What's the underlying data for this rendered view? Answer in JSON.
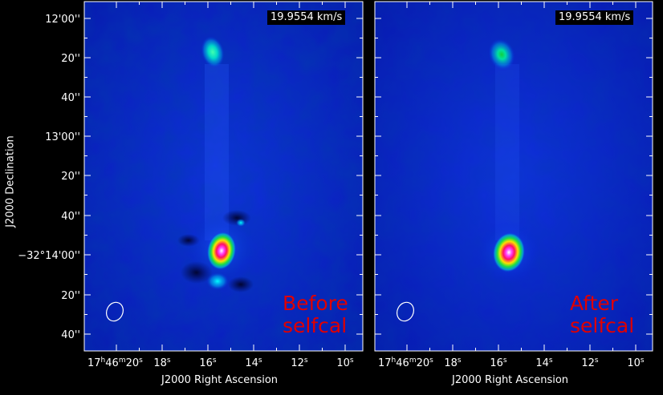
{
  "panels": [
    {
      "velocity_label": "19.9554 km/s",
      "annotation_line1": "Before",
      "annotation_line2": "selfcal"
    },
    {
      "velocity_label": "19.9554 km/s",
      "annotation_line1": "After",
      "annotation_line2": "selfcal"
    }
  ],
  "axes": {
    "xlabel": "J2000 Right Ascension",
    "ylabel": "J2000 Declination",
    "y_ticks": [
      "12'00''",
      "20''",
      "40''",
      "13'00''",
      "20''",
      "40''",
      "−32°14'00''",
      "20''",
      "40''"
    ],
    "x_ticks": [
      {
        "main": "17",
        "h": "h",
        "m_val": "46",
        "m": "m",
        "s_val": "20",
        "s": "s"
      },
      {
        "main": "18",
        "s": "s"
      },
      {
        "main": "16",
        "s": "s"
      },
      {
        "main": "14",
        "s": "s"
      },
      {
        "main": "12",
        "s": "s"
      },
      {
        "main": "10",
        "s": "s"
      }
    ]
  },
  "colors": {
    "background": "#0a20c8",
    "annotation": "#e00000",
    "frame": "#ffffff"
  }
}
